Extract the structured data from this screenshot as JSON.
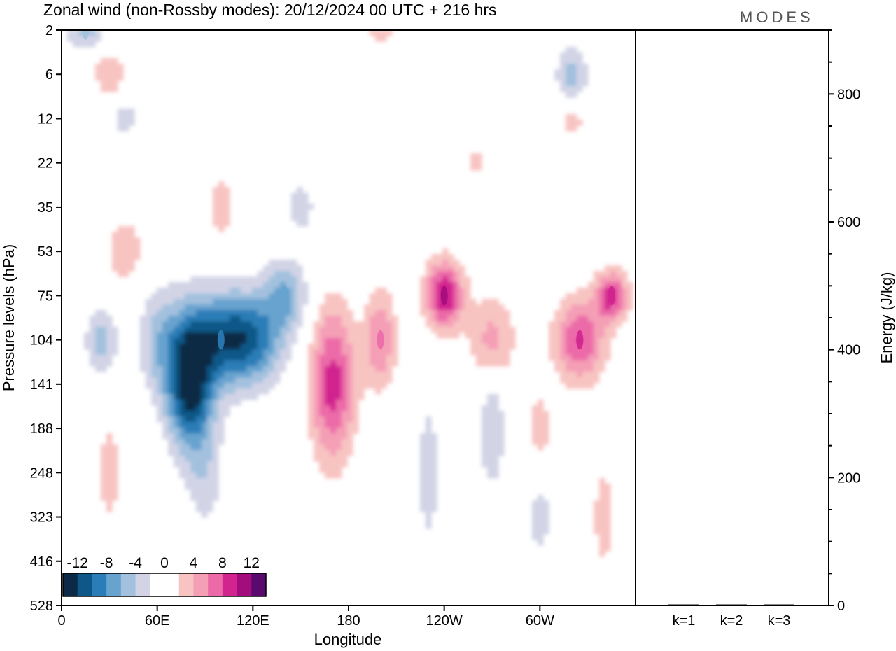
{
  "title": "Zonal wind (non-Rossby modes):  20/12/2024  00 UTC  + 216 hrs",
  "logo": "MODES",
  "colors": {
    "neg": [
      "#0c2a45",
      "#0d5888",
      "#2a7db7",
      "#67a3cf",
      "#a3c1de",
      "#d2d4e6"
    ],
    "pos": [
      "#f8c4c2",
      "#f59fb6",
      "#ec6aa8",
      "#d2248f",
      "#a30c7d",
      "#5a0a6e"
    ]
  },
  "chart_data": [
    {
      "type": "heatmap",
      "variable": "Zonal wind (non-Rossby modes)",
      "xlabel": "Longitude",
      "ylabel": "Pressure levels (hPa)",
      "x_ticks": [
        "0",
        "60E",
        "120E",
        "180",
        "120W",
        "60W"
      ],
      "x_range_deg": [
        0,
        360
      ],
      "y_ticks": [
        "2",
        "6",
        "12",
        "22",
        "35",
        "53",
        "75",
        "104",
        "141",
        "188",
        "248",
        "323",
        "416",
        "528"
      ],
      "y_order": "top-to-bottom",
      "colorbar": {
        "labels": [
          "-12",
          "-8",
          "-4",
          "0",
          "4",
          "8",
          "12"
        ],
        "levels": [
          -14,
          -12,
          -10,
          -8,
          -6,
          -4,
          -2,
          2,
          4,
          6,
          8,
          10,
          12,
          14
        ]
      },
      "features": [
        {
          "lon": 80,
          "level": "141",
          "value": -13
        },
        {
          "lon": 100,
          "level": "104",
          "value": -9
        },
        {
          "lon": 140,
          "level": "75",
          "value": -6
        },
        {
          "lon": 15,
          "level": "2",
          "value": -5
        },
        {
          "lon": 320,
          "level": "6",
          "value": -5
        },
        {
          "lon": 170,
          "level": "141",
          "value": 9
        },
        {
          "lon": 240,
          "level": "75",
          "value": 10
        },
        {
          "lon": 325,
          "level": "104",
          "value": 8
        },
        {
          "lon": 345,
          "level": "75",
          "value": 9
        },
        {
          "lon": 200,
          "level": "104",
          "value": 6
        }
      ]
    },
    {
      "type": "bar",
      "categories": [
        "k=1",
        "k=2",
        "k=3"
      ],
      "values": [
        0.5,
        0.5,
        0.5
      ],
      "ylabel": "Energy (J/kg)",
      "y_ticks": [
        "0",
        "200",
        "400",
        "600",
        "800"
      ],
      "ylim": [
        0,
        900
      ]
    }
  ]
}
